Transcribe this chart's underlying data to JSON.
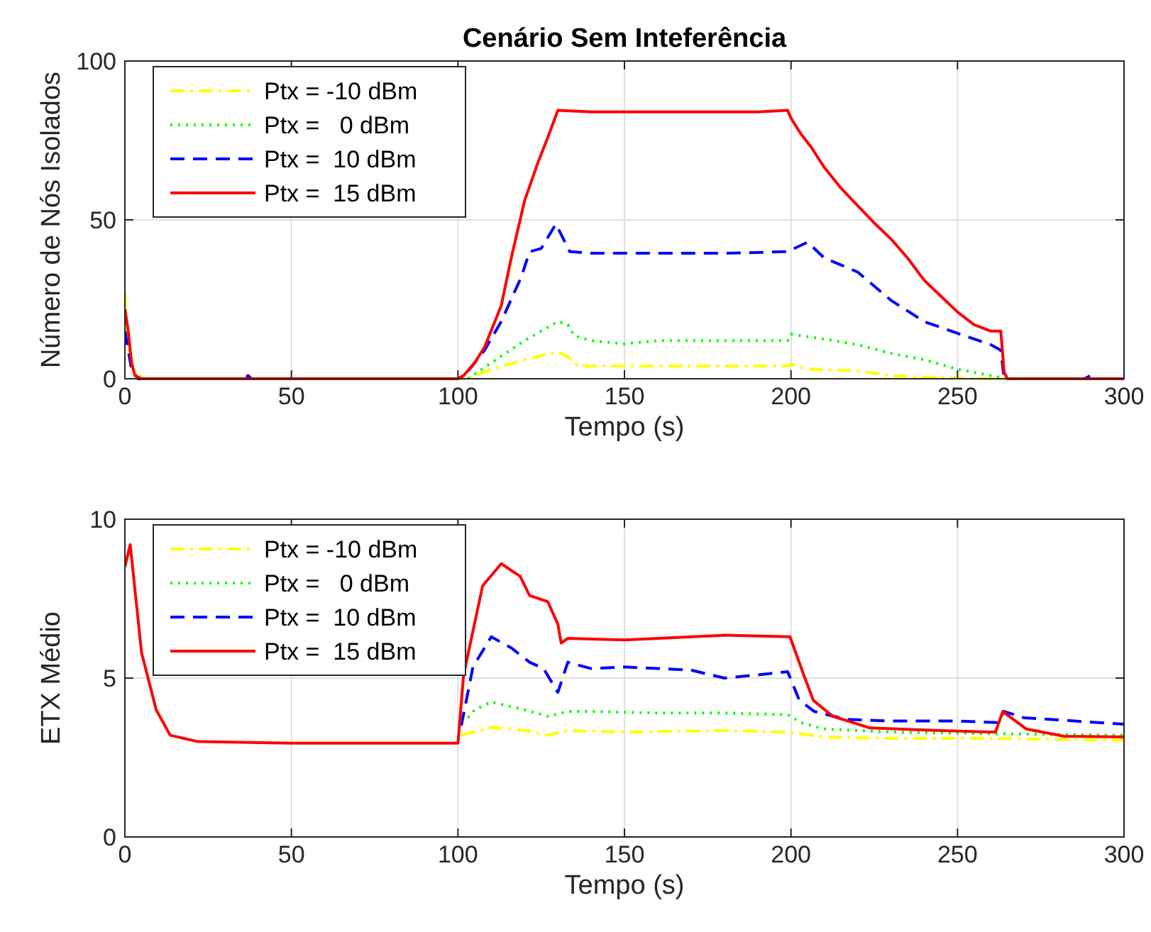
{
  "chart_data": [
    {
      "type": "line",
      "title": "Cenário Sem Inteferência",
      "xlabel": "Tempo (s)",
      "ylabel": "Número de Nós Isolados",
      "xlim": [
        0,
        300
      ],
      "xticks": [
        0,
        50,
        100,
        150,
        200,
        250,
        300
      ],
      "ylim": [
        0,
        100
      ],
      "yticks": [
        0,
        50,
        100
      ],
      "grid": true,
      "legend": "top left",
      "series": [
        {
          "name": "Ptx = -10 dBm",
          "color": "#ffff00",
          "line_style": "dashdot",
          "x": [
            0,
            1,
            3,
            6,
            50,
            103,
            110,
            120,
            130,
            133,
            136,
            150,
            175,
            199,
            200,
            205,
            220,
            230,
            240,
            260,
            300
          ],
          "values": [
            27,
            10,
            2,
            0,
            0,
            0,
            3,
            6,
            8.5,
            7,
            4,
            4,
            4,
            4,
            4.6,
            3,
            2.5,
            1,
            0.5,
            0,
            0
          ]
        },
        {
          "name": "Ptx =   0 dBm",
          "color": "#00ff00",
          "line_style": "dotted",
          "x": [
            103,
            110,
            120,
            125,
            130,
            133,
            135,
            140,
            150,
            160,
            180,
            199,
            200,
            210,
            220,
            230,
            240,
            250,
            260,
            265,
            300
          ],
          "values": [
            0,
            5,
            12,
            15,
            18,
            17,
            13.5,
            12,
            11,
            12,
            12,
            12,
            14,
            12.5,
            10.7,
            8,
            6,
            3,
            1,
            0,
            0
          ]
        },
        {
          "name": "Ptx =  10 dBm",
          "color": "#0000ff",
          "line_style": "dashed",
          "x": [
            0,
            2,
            4,
            36,
            37,
            38,
            100,
            102,
            108,
            113,
            116,
            119,
            121.5,
            125,
            129.4,
            133.6,
            140,
            160,
            180,
            199,
            205,
            210,
            220,
            230,
            240,
            250,
            260,
            263,
            264,
            288,
            290,
            292,
            300
          ],
          "values": [
            15,
            3,
            0,
            0,
            1,
            0,
            0,
            1,
            9,
            18,
            25,
            32,
            40,
            41,
            48.7,
            40,
            39.5,
            39.5,
            39.5,
            40,
            43,
            38,
            33.6,
            24.7,
            18,
            14.3,
            10.7,
            9,
            0,
            0,
            1,
            0,
            0
          ]
        },
        {
          "name": "Ptx =  15 dBm",
          "color": "#ff0000",
          "line_style": "solid",
          "x": [
            0,
            1,
            2,
            3,
            5,
            100,
            101.7,
            105,
            108,
            113,
            116,
            120,
            124,
            127,
            130,
            140,
            150,
            170,
            190,
            199,
            200,
            203,
            206,
            210,
            215,
            220,
            225,
            230,
            235,
            240,
            245,
            250,
            255,
            260,
            263,
            264,
            265,
            300
          ],
          "values": [
            22,
            15,
            5,
            1,
            0,
            0,
            1,
            5,
            10,
            23,
            38,
            56,
            68,
            76,
            84.5,
            84,
            84,
            84,
            84,
            84.5,
            82,
            77,
            73,
            66.5,
            60,
            54.5,
            49,
            44,
            38,
            31,
            26,
            21,
            17,
            15,
            15,
            2,
            0,
            0
          ]
        }
      ]
    },
    {
      "type": "line",
      "xlabel": "Tempo (s)",
      "ylabel": "ETX Médio",
      "xlim": [
        0,
        300
      ],
      "xticks": [
        0,
        50,
        100,
        150,
        200,
        250,
        300
      ],
      "ylim": [
        0,
        10
      ],
      "yticks": [
        0,
        5,
        10
      ],
      "grid": true,
      "legend": "top left",
      "series": [
        {
          "name": "Ptx = -10 dBm",
          "color": "#ffff00",
          "line_style": "dashdot",
          "x": [
            101,
            110,
            120,
            127,
            133,
            150,
            180,
            199,
            210,
            230,
            260,
            300
          ],
          "values": [
            3.2,
            3.45,
            3.35,
            3.2,
            3.35,
            3.3,
            3.35,
            3.3,
            3.15,
            3.1,
            3.1,
            3.05
          ]
        },
        {
          "name": "Ptx =   0 dBm",
          "color": "#00ff00",
          "line_style": "dotted",
          "x": [
            103,
            105,
            110,
            120,
            127,
            133,
            140,
            160,
            180,
            199,
            203,
            210,
            230,
            260,
            300
          ],
          "values": [
            3.75,
            4,
            4.25,
            4,
            3.8,
            3.95,
            3.95,
            3.9,
            3.9,
            3.85,
            3.6,
            3.4,
            3.3,
            3.25,
            3.2
          ]
        },
        {
          "name": "Ptx =  10 dBm",
          "color": "#0000ff",
          "line_style": "dashed",
          "x": [
            101,
            104.5,
            110,
            116,
            121.5,
            125.7,
            130,
            133,
            140,
            150,
            160,
            170,
            180,
            190,
            199,
            202.5,
            207,
            216.7,
            230,
            250,
            262,
            264,
            270,
            300
          ],
          "values": [
            3.5,
            5.35,
            6.3,
            5.95,
            5.5,
            5.3,
            4.55,
            5.5,
            5.3,
            5.35,
            5.3,
            5.25,
            5,
            5.1,
            5.2,
            4.3,
            3.95,
            3.7,
            3.65,
            3.65,
            3.6,
            3.95,
            3.75,
            3.55
          ]
        },
        {
          "name": "Ptx =  15 dBm",
          "color": "#ff0000",
          "line_style": "solid",
          "x": [
            0,
            1.6,
            5,
            9.4,
            13.6,
            22,
            50,
            100,
            101.7,
            107.4,
            113,
            118.7,
            121.5,
            127,
            130,
            131,
            133,
            150,
            180,
            199.7,
            204,
            206.7,
            212.5,
            223.7,
            245,
            261.4,
            263.6,
            270.6,
            282,
            300
          ],
          "values": [
            8.5,
            9.2,
            5.8,
            4,
            3.2,
            3,
            2.95,
            2.95,
            5.1,
            7.9,
            8.6,
            8.2,
            7.6,
            7.4,
            6.7,
            6.1,
            6.25,
            6.2,
            6.35,
            6.3,
            5.05,
            4.3,
            3.8,
            3.43,
            3.35,
            3.3,
            3.95,
            3.4,
            3.17,
            3.15
          ]
        }
      ]
    }
  ]
}
